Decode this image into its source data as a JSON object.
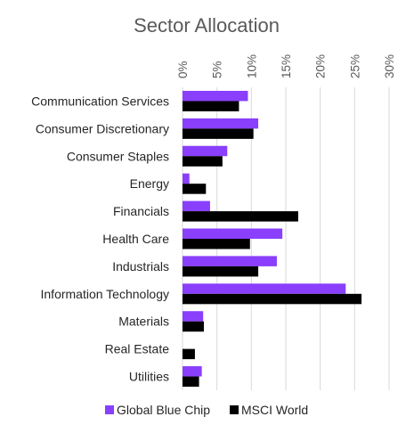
{
  "chart_data": {
    "type": "bar",
    "orientation": "horizontal",
    "title": "Sector Allocation",
    "categories": [
      "Communication Services",
      "Consumer Discretionary",
      "Consumer Staples",
      "Energy",
      "Financials",
      "Health Care",
      "Industrials",
      "Information Technology",
      "Materials",
      "Real Estate",
      "Utilities"
    ],
    "series": [
      {
        "name": "Global Blue Chip",
        "color": "#8a3ffc",
        "values": [
          9.5,
          11.0,
          6.5,
          1.0,
          4.0,
          14.5,
          13.7,
          23.7,
          3.0,
          0.0,
          2.8
        ]
      },
      {
        "name": "MSCI World",
        "color": "#000000",
        "values": [
          8.2,
          10.3,
          5.8,
          3.4,
          16.8,
          9.8,
          11.0,
          26.0,
          3.1,
          1.8,
          2.4
        ]
      }
    ],
    "xlim": [
      0,
      30
    ],
    "ticks": [
      0,
      5,
      10,
      15,
      20,
      25,
      30
    ],
    "tick_labels": [
      "0%",
      "5%",
      "10%",
      "15%",
      "20%",
      "25%",
      "30%"
    ],
    "tick_label_rotation": "vertical",
    "grid": true,
    "legend_position": "bottom"
  }
}
